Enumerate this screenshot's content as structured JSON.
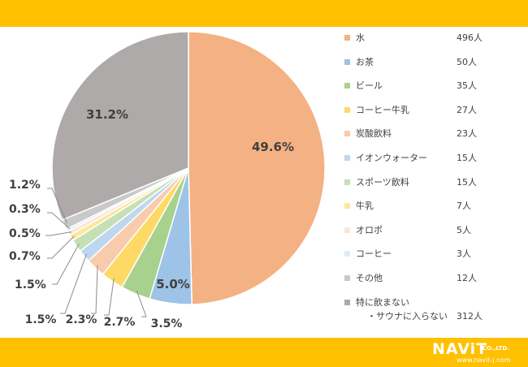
{
  "chart_data": {
    "type": "pie",
    "title": "",
    "start_angle_deg": 0,
    "direction": "clockwise",
    "slices": [
      {
        "label": "水",
        "count": "496人",
        "percent": 49.6,
        "percent_label": "49.6%",
        "color": "#F4B183"
      },
      {
        "label": "お茶",
        "count": "50人",
        "percent": 5.0,
        "percent_label": "5.0%",
        "color": "#9DC3E6"
      },
      {
        "label": "ビール",
        "count": "35人",
        "percent": 3.5,
        "percent_label": "3.5%",
        "color": "#A9D18E"
      },
      {
        "label": "コーヒー牛乳",
        "count": "27人",
        "percent": 2.7,
        "percent_label": "2.7%",
        "color": "#FFD966"
      },
      {
        "label": "炭酸飲料",
        "count": "23人",
        "percent": 2.3,
        "percent_label": "2.3%",
        "color": "#F8CBAD"
      },
      {
        "label": "イオンウォーター",
        "count": "15人",
        "percent": 1.5,
        "percent_label": "1.5%",
        "color": "#BDD7EE"
      },
      {
        "label": "スポーツ飲料",
        "count": "15人",
        "percent": 1.5,
        "percent_label": "1.5%",
        "color": "#C5E0B4"
      },
      {
        "label": "牛乳",
        "count": "7人",
        "percent": 0.7,
        "percent_label": "0.7%",
        "color": "#FFE699"
      },
      {
        "label": "オロポ",
        "count": "5人",
        "percent": 0.5,
        "percent_label": "0.5%",
        "color": "#FBE5D6"
      },
      {
        "label": "コーヒー",
        "count": "3人",
        "percent": 0.3,
        "percent_label": "0.3%",
        "color": "#DEEBF7"
      },
      {
        "label": "その他",
        "count": "12人",
        "percent": 1.2,
        "percent_label": "1.2%",
        "color": "#C9C9C9"
      },
      {
        "label": "特に飲まない",
        "label_line2": "・サウナに入らない",
        "count": "312人",
        "percent": 31.2,
        "percent_label": "31.2%",
        "color": "#AEAAAA"
      }
    ]
  },
  "branding": {
    "logo_main": "NAViT",
    "logo_company": "CO.,LTD.",
    "logo_url": "www.navit-j.com"
  },
  "colors": {
    "band": "#FFC000",
    "label_text": "#404040",
    "leader_line": "#8C8C8C"
  }
}
